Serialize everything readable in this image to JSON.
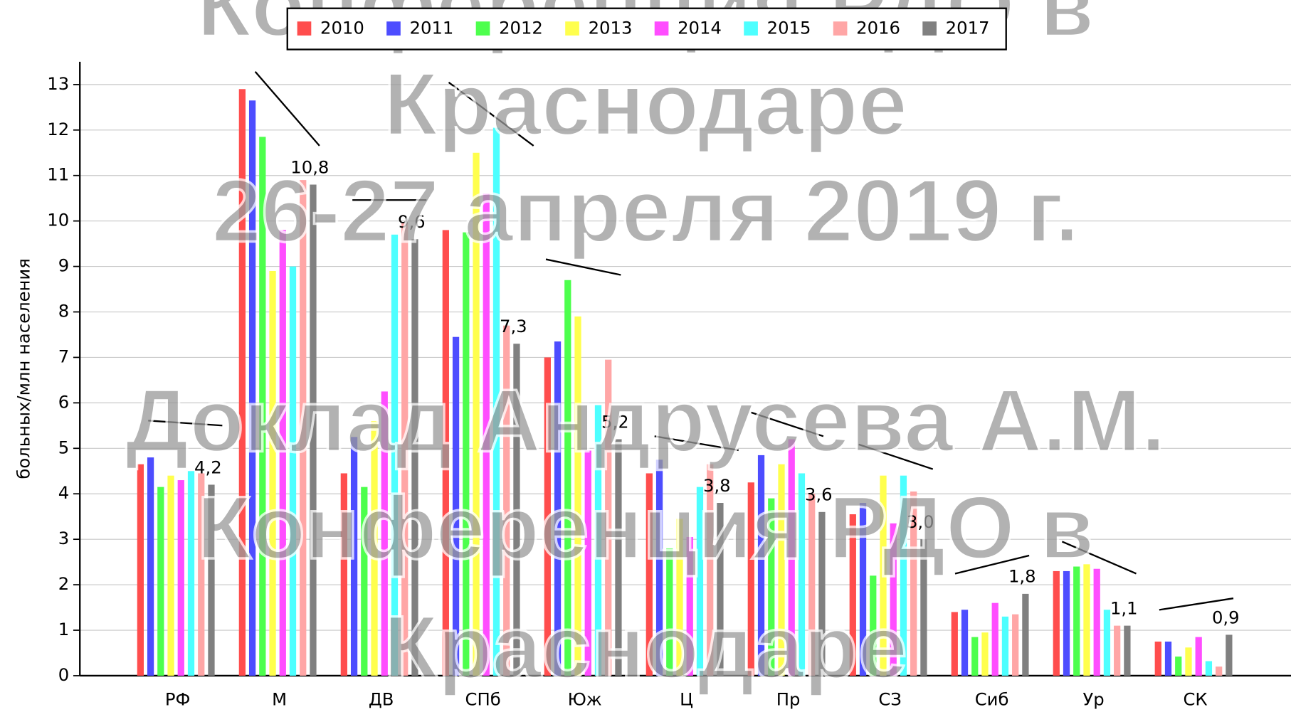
{
  "chart_data": {
    "type": "bar",
    "y_label": "больных/млн населения",
    "categories": [
      "РФ",
      "М",
      "ДВ",
      "СПб",
      "Юж",
      "Ц",
      "Пр",
      "СЗ",
      "Сиб",
      "Ур",
      "СК"
    ],
    "series": [
      {
        "name": "2010",
        "color": "#ff4d4d",
        "values": [
          4.65,
          12.9,
          4.45,
          9.8,
          7.0,
          4.45,
          4.25,
          3.55,
          1.4,
          2.3,
          0.75
        ]
      },
      {
        "name": "2011",
        "color": "#4d4dff",
        "values": [
          4.8,
          12.65,
          5.25,
          7.45,
          7.35,
          4.75,
          4.85,
          3.8,
          1.45,
          2.3,
          0.75
        ]
      },
      {
        "name": "2012",
        "color": "#4dff4d",
        "values": [
          4.15,
          11.85,
          4.15,
          9.75,
          8.7,
          2.8,
          3.9,
          2.2,
          0.85,
          2.4,
          0.42
        ]
      },
      {
        "name": "2013",
        "color": "#ffff4d",
        "values": [
          4.4,
          8.9,
          5.6,
          11.5,
          7.9,
          3.45,
          4.65,
          4.4,
          0.95,
          2.45,
          0.62
        ]
      },
      {
        "name": "2014",
        "color": "#ff4dff",
        "values": [
          4.3,
          9.8,
          6.25,
          10.6,
          4.95,
          3.05,
          5.2,
          3.35,
          1.6,
          2.35,
          0.85
        ]
      },
      {
        "name": "2015",
        "color": "#4dffff",
        "values": [
          4.5,
          9.0,
          9.7,
          12.05,
          5.95,
          4.15,
          4.45,
          4.4,
          1.3,
          1.45,
          0.32
        ]
      },
      {
        "name": "2016",
        "color": "#ffa6a6",
        "values": [
          4.45,
          10.9,
          9.95,
          7.7,
          6.95,
          4.65,
          4.0,
          4.05,
          1.35,
          1.1,
          0.2
        ]
      },
      {
        "name": "2017",
        "color": "#808080",
        "values": [
          4.2,
          10.8,
          9.6,
          7.3,
          5.2,
          3.8,
          3.6,
          3.0,
          1.8,
          1.1,
          0.9
        ],
        "value_labels": [
          "4,2",
          "10,8",
          "9,6",
          "7,3",
          "5,2",
          "3,8",
          "3,6",
          "3,0",
          "1,8",
          "1,1",
          "0,9"
        ]
      }
    ],
    "ylim": [
      0,
      13.5
    ],
    "yticks": [
      0,
      1,
      2,
      3,
      4,
      5,
      6,
      7,
      8,
      9,
      10,
      11,
      12,
      13
    ],
    "grid": true,
    "legend": "top",
    "annotations": [
      "Конференция РДО в",
      "Краснодаре",
      "26-27 апреля 2019 г.",
      "Доклад Андрусева А.М.",
      "Конференция РДО в",
      "Краснодаре"
    ]
  }
}
